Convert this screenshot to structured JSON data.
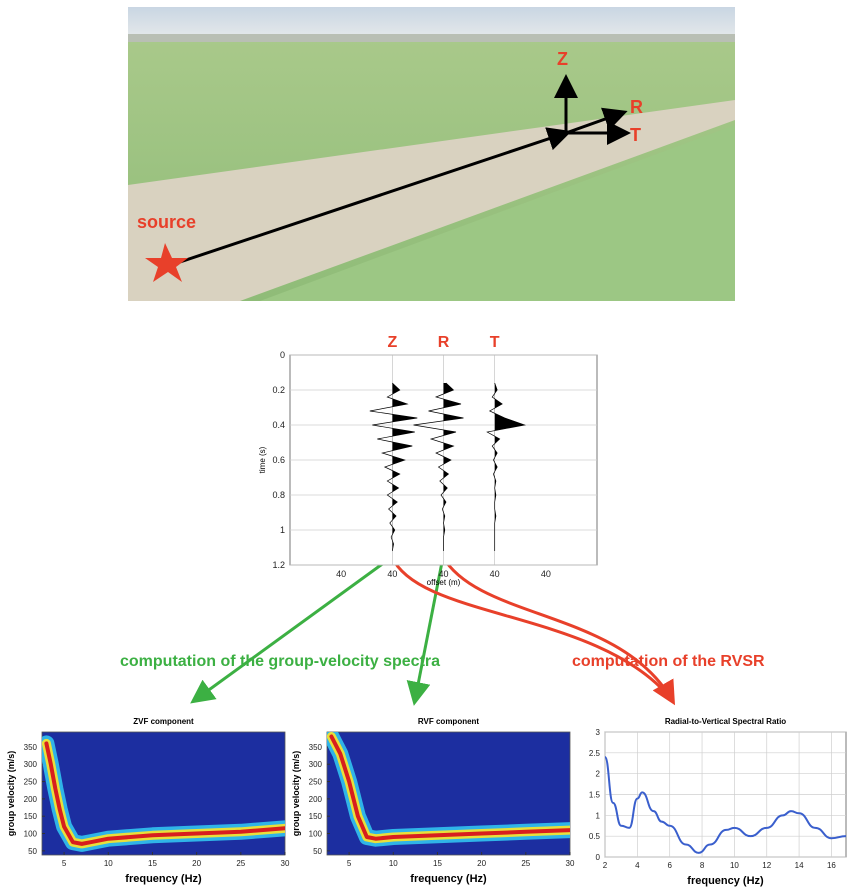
{
  "photo": {
    "axis_labels": [
      "Z",
      "R",
      "T"
    ],
    "source_label": "source"
  },
  "annotations": {
    "group_velocity": "computation of the group-velocity spectra",
    "rvsr": "computation of the RVSR"
  },
  "chart_data": [
    {
      "type": "wiggle",
      "ylabel": "time (s)",
      "xlabel": "offset (m)",
      "categories": [
        "40",
        "40",
        "40",
        "40",
        "40"
      ],
      "ylim": [
        0,
        1.2
      ],
      "y_reversed": true,
      "yticks": [
        0,
        0.2,
        0.4,
        0.6,
        0.8,
        1,
        1.2
      ],
      "grid": true,
      "label_color": "#e8402a",
      "x": [
        0.16,
        0.2,
        0.24,
        0.28,
        0.32,
        0.36,
        0.4,
        0.44,
        0.48,
        0.52,
        0.56,
        0.6,
        0.64,
        0.68,
        0.72,
        0.76,
        0.8,
        0.84,
        0.88,
        0.92,
        0.96,
        1.0,
        1.04,
        1.08,
        1.12
      ],
      "series": [
        {
          "name": "Z",
          "color": "#000000",
          "values": [
            0,
            0.3,
            -0.2,
            0.6,
            -0.9,
            1,
            -0.8,
            0.9,
            -0.6,
            0.8,
            -0.4,
            0.5,
            -0.3,
            0.3,
            -0.2,
            0.25,
            -0.2,
            0.2,
            -0.15,
            0.15,
            -0.1,
            0.1,
            -0.05,
            0.05,
            0
          ]
        },
        {
          "name": "R",
          "color": "#000000",
          "values": [
            0.1,
            0.4,
            -0.3,
            0.7,
            -0.6,
            0.8,
            -1.2,
            0.5,
            -0.5,
            0.4,
            -0.3,
            0.3,
            -0.2,
            0.2,
            -0.15,
            0.15,
            -0.1,
            0.1,
            -0.05,
            0.05,
            0,
            0.05,
            0,
            0,
            0
          ]
        },
        {
          "name": "T",
          "color": "#000000",
          "values": [
            0,
            0.1,
            -0.1,
            0.3,
            -0.2,
            0.4,
            1.2,
            -0.3,
            0.2,
            -0.1,
            0.1,
            -0.05,
            0.1,
            -0.05,
            0.05,
            0,
            0.05,
            0,
            0,
            0.05,
            0,
            0,
            0,
            0,
            0
          ]
        }
      ]
    },
    {
      "type": "dispersion",
      "title": "ZVF component",
      "xlabel": "frequency (Hz)",
      "ylabel": "group velocity (m/s)",
      "xlim": [
        2.5,
        30
      ],
      "ylim": [
        38,
        393
      ],
      "xticks": [
        5,
        10,
        15,
        20,
        25,
        30
      ],
      "yticks": [
        50,
        100,
        150,
        200,
        250,
        300,
        350
      ],
      "background": "#1c2ea0",
      "x": [
        3,
        3.5,
        4,
        4.5,
        5,
        6,
        7,
        8,
        10,
        15,
        20,
        25,
        30
      ],
      "values": [
        360,
        300,
        230,
        170,
        120,
        75,
        70,
        75,
        85,
        95,
        100,
        105,
        115
      ]
    },
    {
      "type": "dispersion",
      "title": "RVF component",
      "xlabel": "frequency (Hz)",
      "ylabel": "group velocity (m/s)",
      "xlim": [
        2.5,
        30
      ],
      "ylim": [
        38,
        393
      ],
      "xticks": [
        5,
        10,
        15,
        20,
        25,
        30
      ],
      "yticks": [
        50,
        100,
        150,
        200,
        250,
        300,
        350
      ],
      "background": "#1c2ea0",
      "x": [
        3,
        4,
        5,
        6,
        7,
        8,
        10,
        15,
        20,
        25,
        30
      ],
      "values": [
        380,
        330,
        250,
        150,
        90,
        85,
        90,
        95,
        100,
        105,
        110
      ]
    },
    {
      "type": "line",
      "title": "Radial-to-Vertical Spectral Ratio",
      "xlabel": "frequency (Hz)",
      "color": "#3a5fcd",
      "grid": true,
      "xlim": [
        2,
        16.9
      ],
      "ylim": [
        0,
        3
      ],
      "xticks": [
        2,
        4,
        6,
        8,
        10,
        12,
        14,
        16
      ],
      "yticks": [
        0,
        0.5,
        1,
        1.5,
        2,
        2.5,
        3
      ],
      "x": [
        2,
        2.5,
        3,
        3.5,
        4,
        4.3,
        5,
        5.5,
        6,
        7,
        7.8,
        8.5,
        9.5,
        10,
        11,
        12,
        13,
        13.5,
        14,
        15,
        16,
        16.9
      ],
      "values": [
        2.4,
        1.3,
        0.75,
        0.7,
        1.4,
        1.55,
        1.1,
        0.85,
        0.75,
        0.3,
        0.1,
        0.3,
        0.65,
        0.7,
        0.5,
        0.7,
        1.0,
        1.1,
        1.05,
        0.7,
        0.45,
        0.5
      ]
    }
  ]
}
